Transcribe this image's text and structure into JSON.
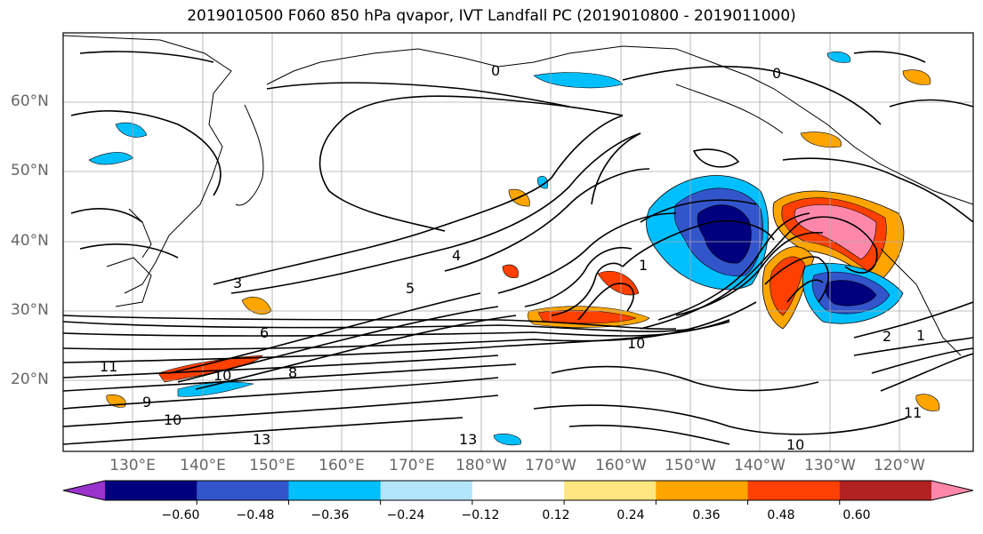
{
  "title": "2019010500 F060 850 hPa qvapor, IVT Landfall PC (2019010800 - 2019011000)",
  "lat_labels": [
    "60°N",
    "50°N",
    "40°N",
    "30°N",
    "20°N"
  ],
  "lon_labels": [
    "130°E",
    "140°E",
    "150°E",
    "160°E",
    "170°E",
    "180°W",
    "170°W",
    "160°W",
    "150°W",
    "140°W",
    "130°W",
    "120°W"
  ],
  "colorbar": {
    "colors": [
      "#9933cc",
      "#00007f",
      "#3355cc",
      "#00bfff",
      "#b3e5fc",
      "#ffffff",
      "#ffe680",
      "#ffa500",
      "#ff4000",
      "#b22222",
      "#ff88aa"
    ],
    "ticks": [
      "−0.60",
      "−0.48",
      "−0.36",
      "−0.24",
      "−0.12",
      "0.12",
      "0.24",
      "0.36",
      "0.48",
      "0.60"
    ]
  },
  "contour_labels": [
    "0",
    "0",
    "1",
    "1",
    "2",
    "3",
    "4",
    "5",
    "6",
    "8",
    "9",
    "10",
    "10",
    "10",
    "10",
    "11",
    "11",
    "13",
    "13"
  ]
}
